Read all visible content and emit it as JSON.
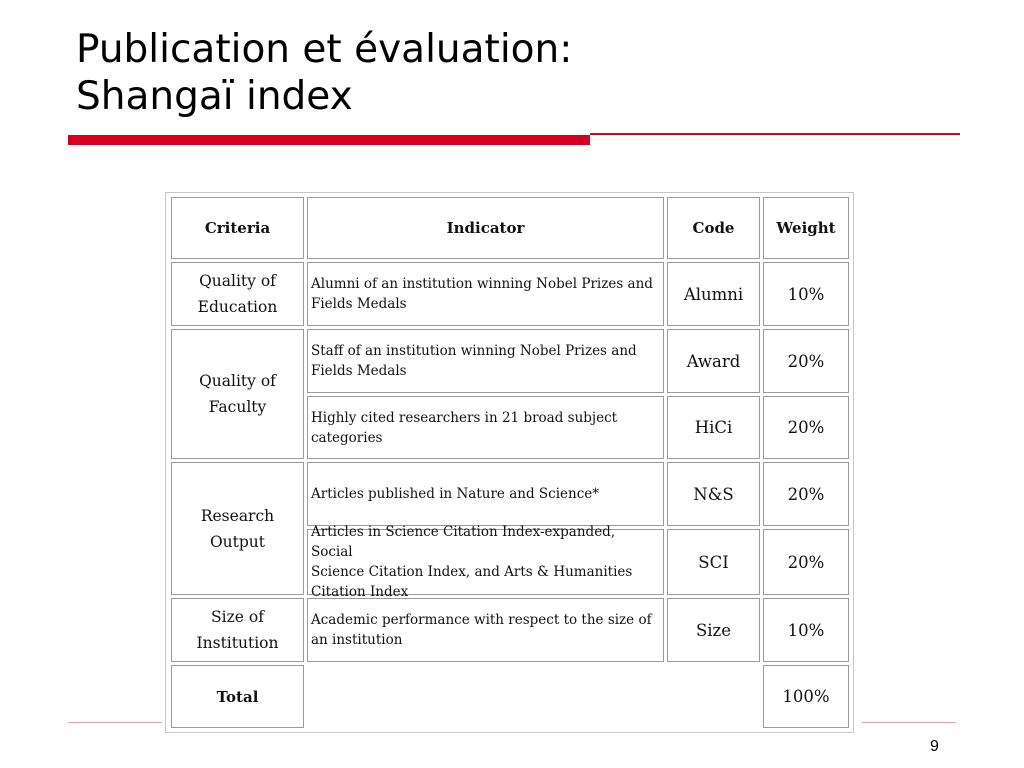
{
  "slide": {
    "title_line1": "Publication et évaluation:",
    "title_line2": "Shangaï index",
    "page_number": "9",
    "accent_color": "#d8001f"
  },
  "table": {
    "headers": {
      "criteria": "Criteria",
      "indicator": "Indicator",
      "code": "Code",
      "weight": "Weight"
    },
    "groups": [
      {
        "criteria": [
          "Quality of",
          "Education"
        ]
      },
      {
        "criteria": [
          "Quality of",
          "Faculty"
        ]
      },
      {
        "criteria": [
          "Research",
          "Output"
        ]
      },
      {
        "criteria": [
          "Size of",
          "Institution"
        ]
      }
    ],
    "rows": [
      {
        "indicator": [
          "Alumni of an institution winning Nobel Prizes and",
          "Fields Medals"
        ],
        "code": "Alumni",
        "weight": "10%"
      },
      {
        "indicator": [
          "Staff of an institution winning Nobel Prizes and",
          "Fields Medals"
        ],
        "code": "Award",
        "weight": "20%"
      },
      {
        "indicator": [
          "Highly cited researchers in 21 broad subject",
          "categories"
        ],
        "code": "HiCi",
        "weight": "20%"
      },
      {
        "indicator": [
          "Articles published in Nature and Science*"
        ],
        "code": "N&S",
        "weight": "20%"
      },
      {
        "indicator": [
          "Articles in Science Citation Index-expanded, Social",
          "Science Citation Index, and Arts & Humanities",
          "Citation Index"
        ],
        "code": "SCI",
        "weight": "20%"
      },
      {
        "indicator": [
          "Academic performance with respect to the size of",
          "an institution"
        ],
        "code": "Size",
        "weight": "10%"
      }
    ],
    "total": {
      "label": "Total",
      "weight": "100%"
    }
  }
}
